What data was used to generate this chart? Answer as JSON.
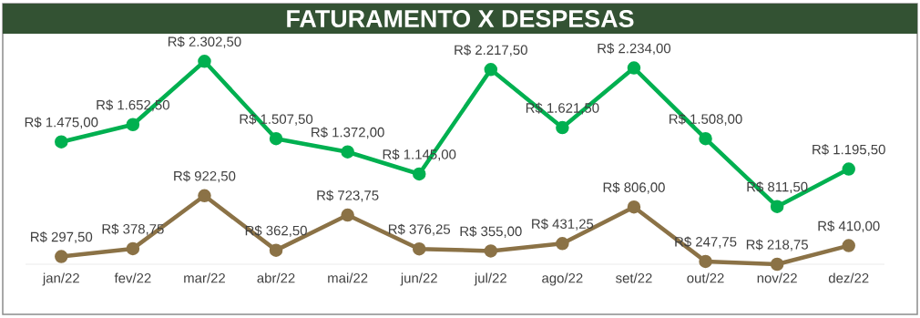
{
  "chart_data": {
    "type": "line",
    "title": "FATURAMENTO X DESPESAS",
    "categories": [
      "jan/22",
      "fev/22",
      "mar/22",
      "abr/22",
      "mai/22",
      "jun/22",
      "jul/22",
      "ago/22",
      "set/22",
      "out/22",
      "nov/22",
      "dez/22"
    ],
    "series": [
      {
        "color": "#00b050",
        "values": [
          1475.0,
          1652.5,
          2302.5,
          1507.5,
          1372.0,
          1145.0,
          2217.5,
          1621.5,
          2234.0,
          1508.0,
          811.5,
          1195.5
        ],
        "value_labels": [
          "R$ 1.475,00",
          "R$ 1.652,50",
          "R$ 2.302,50",
          "R$ 1.507,50",
          "R$ 1.372,00",
          "R$ 1.145,00",
          "R$ 2.217,50",
          "R$ 1.621,50",
          "R$ 2.234,00",
          "R$ 1.508,00",
          "R$ 811,50",
          "R$ 1.195,50"
        ]
      },
      {
        "color": "#8b7246",
        "values": [
          297.5,
          378.75,
          922.5,
          362.5,
          723.75,
          376.25,
          355.0,
          431.25,
          806.0,
          247.75,
          218.75,
          410.0
        ],
        "value_labels": [
          "R$ 297,50",
          "R$ 378,75",
          "R$ 922,50",
          "R$ 362,50",
          "R$ 723,75",
          "R$ 376,25",
          "R$ 355,00",
          "R$ 431,25",
          "R$ 806,00",
          "R$ 247,75",
          "R$ 218,75",
          "R$ 410,00"
        ]
      }
    ],
    "marker": "circle",
    "line_style": "solid"
  }
}
